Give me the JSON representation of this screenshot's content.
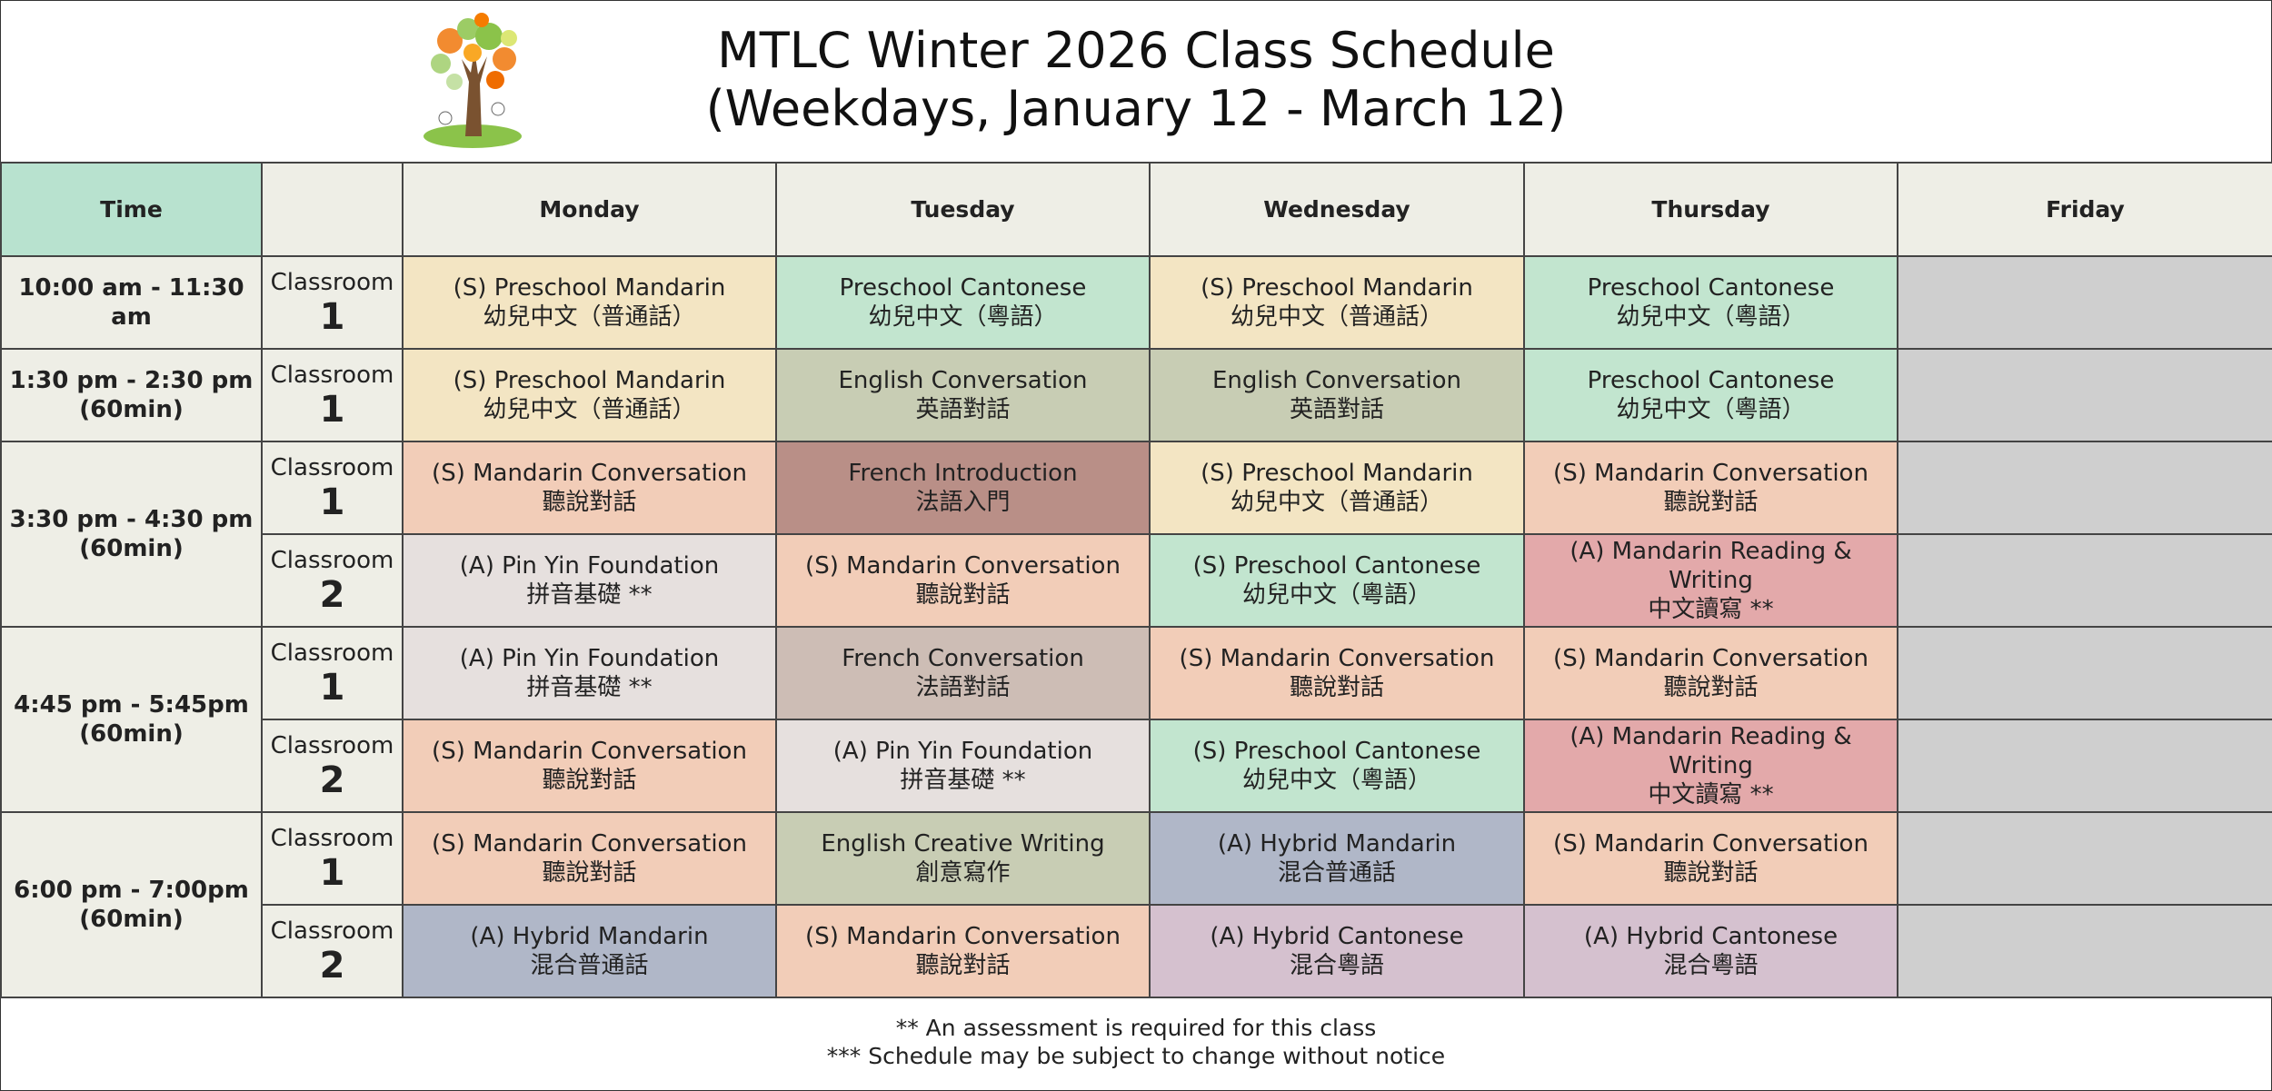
{
  "header": {
    "title": [
      "MTLC Winter 2026 Class Schedule",
      "(Weekdays, January 12 - March 12)"
    ]
  },
  "table": {
    "time_heading": "Time",
    "days": [
      "Monday",
      "Tuesday",
      "Wednesday",
      "Thursday",
      "Friday"
    ],
    "slots": [
      {
        "time": [
          "10:00 am - 11:30 am"
        ],
        "rooms": [
          {
            "label": "Classroom",
            "number": 1,
            "classes": [
              {
                "en": "(S) Preschool Mandarin",
                "zh": "幼兒中文（普通話）",
                "color": "#f3e5c3"
              },
              {
                "en": "Preschool Cantonese",
                "zh": "幼兒中文（粵語）",
                "color": "#c2e5cf"
              },
              {
                "en": "(S) Preschool Mandarin",
                "zh": "幼兒中文（普通話）",
                "color": "#f3e5c3"
              },
              {
                "en": "Preschool Cantonese",
                "zh": "幼兒中文（粵語）",
                "color": "#c2e5cf"
              }
            ]
          }
        ]
      },
      {
        "time": [
          "1:30 pm - 2:30 pm",
          "(60min)"
        ],
        "rooms": [
          {
            "label": "Classroom",
            "number": 1,
            "classes": [
              {
                "en": "(S) Preschool Mandarin",
                "zh": "幼兒中文（普通話）",
                "color": "#f3e5c3"
              },
              {
                "en": "English Conversation",
                "zh": "英語對話",
                "color": "#c8cdb4"
              },
              {
                "en": "English Conversation",
                "zh": "英語對話",
                "color": "#c8cdb4"
              },
              {
                "en": "Preschool Cantonese",
                "zh": "幼兒中文（粵語）",
                "color": "#c2e5cf"
              }
            ]
          }
        ]
      },
      {
        "time": [
          "3:30 pm - 4:30 pm",
          "(60min)"
        ],
        "rooms": [
          {
            "label": "Classroom",
            "number": 1,
            "classes": [
              {
                "en": "(S) Mandarin Conversation",
                "zh": "聽說對話",
                "color": "#f2cdb8"
              },
              {
                "en": "French Introduction",
                "zh": "法語入門",
                "color": "#b98f87"
              },
              {
                "en": "(S) Preschool Mandarin",
                "zh": "幼兒中文（普通話）",
                "color": "#f3e5c3"
              },
              {
                "en": "(S) Mandarin Conversation",
                "zh": "聽說對話",
                "color": "#f2cdb8"
              }
            ]
          },
          {
            "label": "Classroom",
            "number": 2,
            "classes": [
              {
                "en": "(A) Pin Yin Foundation",
                "zh": "拼音基礎 **",
                "color": "#e6e0de"
              },
              {
                "en": "(S) Mandarin Conversation",
                "zh": "聽說對話",
                "color": "#f2cdb8"
              },
              {
                "en": "(S) Preschool Cantonese",
                "zh": "幼兒中文（粵語）",
                "color": "#c2e5cf"
              },
              {
                "en": "(A) Mandarin Reading & Writing",
                "zh": "中文讀寫 **",
                "color": "#e3a9aa"
              }
            ]
          }
        ]
      },
      {
        "time": [
          "4:45 pm - 5:45pm",
          "(60min)"
        ],
        "rooms": [
          {
            "label": "Classroom",
            "number": 1,
            "classes": [
              {
                "en": "(A) Pin Yin Foundation",
                "zh": "拼音基礎 **",
                "color": "#e6e0de"
              },
              {
                "en": "French Conversation",
                "zh": "法語對話",
                "color": "#cdbdb5"
              },
              {
                "en": "(S) Mandarin Conversation",
                "zh": "聽說對話",
                "color": "#f2cdb8"
              },
              {
                "en": "(S) Mandarin Conversation",
                "zh": "聽說對話",
                "color": "#f2cdb8"
              }
            ]
          },
          {
            "label": "Classroom",
            "number": 2,
            "classes": [
              {
                "en": "(S) Mandarin Conversation",
                "zh": "聽說對話",
                "color": "#f2cdb8"
              },
              {
                "en": "(A) Pin Yin Foundation",
                "zh": "拼音基礎 **",
                "color": "#e6e0de"
              },
              {
                "en": "(S) Preschool Cantonese",
                "zh": "幼兒中文（粵語）",
                "color": "#c2e5cf"
              },
              {
                "en": "(A) Mandarin Reading & Writing",
                "zh": "中文讀寫 **",
                "color": "#e3a9aa"
              }
            ]
          }
        ]
      },
      {
        "time": [
          "6:00 pm - 7:00pm",
          "(60min)"
        ],
        "rooms": [
          {
            "label": "Classroom",
            "number": 1,
            "classes": [
              {
                "en": "(S) Mandarin Conversation",
                "zh": "聽說對話",
                "color": "#f2cdb8"
              },
              {
                "en": "English Creative Writing",
                "zh": "創意寫作",
                "color": "#c8cdb4"
              },
              {
                "en": "(A) Hybrid Mandarin",
                "zh": "混合普通話",
                "color": "#b0b7c8"
              },
              {
                "en": "(S) Mandarin Conversation",
                "zh": "聽說對話",
                "color": "#f2cdb8"
              }
            ]
          },
          {
            "label": "Classroom",
            "number": 2,
            "classes": [
              {
                "en": "(A) Hybrid Mandarin",
                "zh": "混合普通話",
                "color": "#b0b7c8"
              },
              {
                "en": "(S) Mandarin Conversation",
                "zh": "聽說對話",
                "color": "#f2cdb8"
              },
              {
                "en": "(A) Hybrid Cantonese",
                "zh": "混合粵語",
                "color": "#d5c1cf"
              },
              {
                "en": "(A) Hybrid Cantonese",
                "zh": "混合粵語",
                "color": "#d5c1cf"
              }
            ]
          }
        ]
      }
    ]
  },
  "footer": {
    "notes": [
      "** An assessment is required for this class",
      "*** Schedule may be subject to change without notice"
    ]
  }
}
